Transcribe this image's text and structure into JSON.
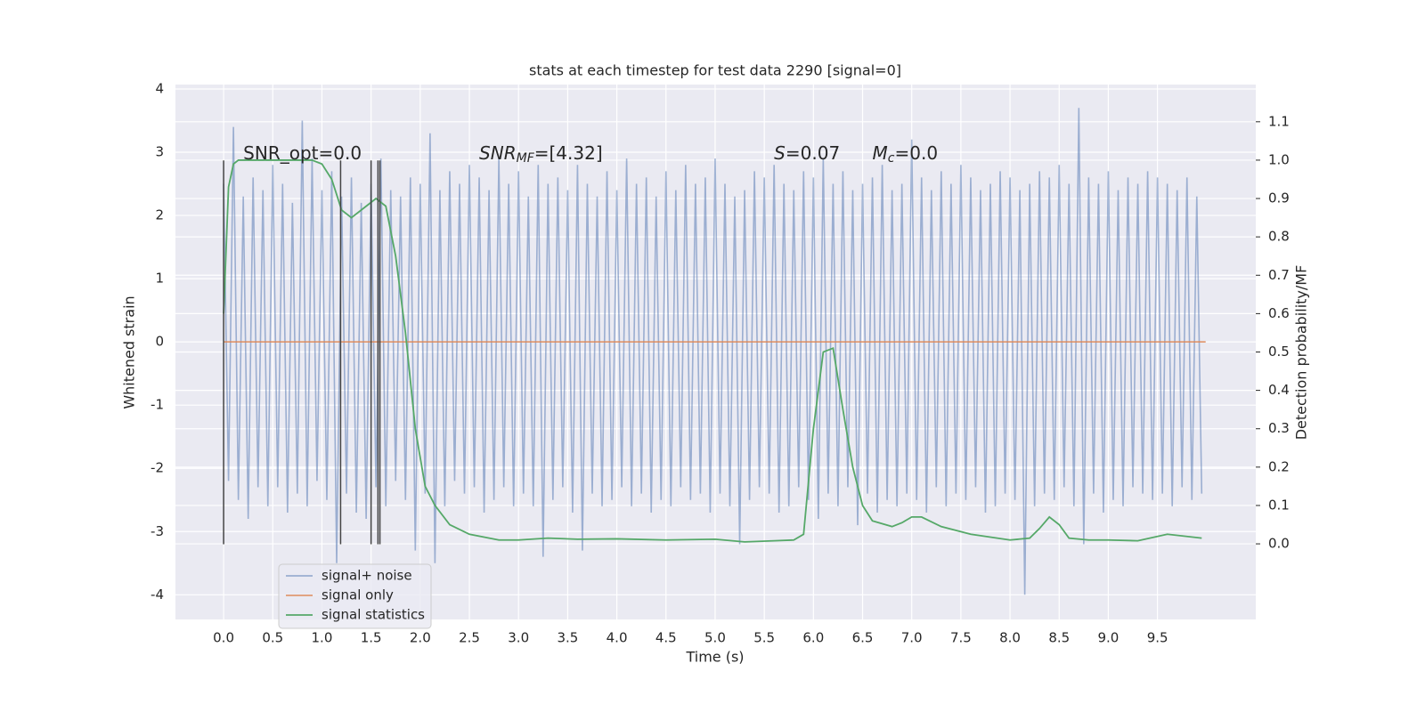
{
  "chart_data": {
    "type": "line",
    "title": "stats at each timestep for test data 2290 [signal=0]",
    "xlabel": "Time (s)",
    "ylabel": "Whitened strain",
    "y2label": "Detection probability/MF",
    "xlim": [
      -0.49,
      10.5
    ],
    "ylim": [
      -4.39,
      4.07
    ],
    "y2lim": [
      -0.197,
      1.197
    ],
    "xticks": [
      {
        "value": 0,
        "label": "0.0"
      },
      0.5,
      {
        "value": 1,
        "label": "1.0"
      },
      1.5,
      {
        "value": 2,
        "label": "2.0"
      },
      2.5,
      {
        "value": 3,
        "label": "3.0"
      },
      3.5,
      {
        "value": 4,
        "label": "4.0"
      },
      4.5,
      {
        "value": 5,
        "label": "5.0"
      },
      5.5,
      {
        "value": 6,
        "label": "6.0"
      },
      6.5,
      {
        "value": 7,
        "label": "7.0"
      },
      7.5,
      {
        "value": 8,
        "label": "8.0"
      },
      8.5,
      {
        "value": 9,
        "label": "9.0"
      },
      9.5
    ],
    "yticks": [
      -4,
      -3,
      -2,
      -1,
      0,
      1,
      2,
      3,
      4
    ],
    "y2ticks": [
      {
        "value": 0,
        "label": "0.0"
      },
      0.1,
      0.2,
      0.3,
      0.4,
      0.5,
      0.6,
      0.7,
      0.8,
      0.9,
      {
        "value": 1,
        "label": "1.0"
      },
      1.1
    ],
    "grid": true,
    "legend": "lower left",
    "series": [
      {
        "name": "signal+ noise",
        "color": "#4c72b0",
        "opacity": 0.5,
        "x": [
          0,
          0.05,
          0.1,
          0.15,
          0.2,
          0.25,
          0.3,
          0.35,
          0.4,
          0.45,
          0.5,
          0.55,
          0.6,
          0.65,
          0.7,
          0.75,
          0.8,
          0.85,
          0.9,
          0.95,
          1,
          1.05,
          1.1,
          1.15,
          1.2,
          1.25,
          1.3,
          1.35,
          1.4,
          1.45,
          1.5,
          1.55,
          1.6,
          1.65,
          1.7,
          1.75,
          1.8,
          1.85,
          1.9,
          1.95,
          2,
          2.05,
          2.1,
          2.15,
          2.2,
          2.25,
          2.3,
          2.35,
          2.4,
          2.45,
          2.5,
          2.55,
          2.6,
          2.65,
          2.7,
          2.75,
          2.8,
          2.85,
          2.9,
          2.95,
          3,
          3.05,
          3.1,
          3.15,
          3.2,
          3.25,
          3.3,
          3.35,
          3.4,
          3.45,
          3.5,
          3.55,
          3.6,
          3.65,
          3.7,
          3.75,
          3.8,
          3.85,
          3.9,
          3.95,
          4,
          4.05,
          4.1,
          4.15,
          4.2,
          4.25,
          4.3,
          4.35,
          4.4,
          4.45,
          4.5,
          4.55,
          4.6,
          4.65,
          4.7,
          4.75,
          4.8,
          4.85,
          4.9,
          4.95,
          5,
          5.05,
          5.1,
          5.15,
          5.2,
          5.25,
          5.3,
          5.35,
          5.4,
          5.45,
          5.5,
          5.55,
          5.6,
          5.65,
          5.7,
          5.75,
          5.8,
          5.85,
          5.9,
          5.95,
          6,
          6.05,
          6.1,
          6.15,
          6.2,
          6.25,
          6.3,
          6.35,
          6.4,
          6.45,
          6.5,
          6.55,
          6.6,
          6.65,
          6.7,
          6.75,
          6.8,
          6.85,
          6.9,
          6.95,
          7,
          7.05,
          7.1,
          7.15,
          7.2,
          7.25,
          7.3,
          7.35,
          7.4,
          7.45,
          7.5,
          7.55,
          7.6,
          7.65,
          7.7,
          7.75,
          7.8,
          7.85,
          7.9,
          7.95,
          8,
          8.05,
          8.1,
          8.15,
          8.2,
          8.25,
          8.3,
          8.35,
          8.4,
          8.45,
          8.5,
          8.55,
          8.6,
          8.65,
          8.7,
          8.75,
          8.8,
          8.85,
          8.9,
          8.95,
          9,
          9.05,
          9.1,
          9.15,
          9.2,
          9.25,
          9.3,
          9.35,
          9.4,
          9.45,
          9.5,
          9.55,
          9.6,
          9.65,
          9.7,
          9.75,
          9.8,
          9.85,
          9.9,
          9.95
        ],
        "values": [
          2.5,
          -2.2,
          3.4,
          -2.5,
          2.3,
          -2.8,
          2.6,
          -2.3,
          2.4,
          -2.6,
          2.8,
          -2.3,
          2.5,
          -2.7,
          2.2,
          -2.4,
          3.5,
          -2.6,
          2.9,
          -2.2,
          2.4,
          -2.5,
          2.7,
          -3.5,
          2.3,
          -2.4,
          2.6,
          -2.7,
          2.2,
          -2.8,
          2.5,
          -2.3,
          2.9,
          -2.6,
          2.4,
          -2.2,
          2.3,
          -2.5,
          2.6,
          -3.3,
          2.5,
          -2.4,
          3.3,
          -3.5,
          2.4,
          -2.6,
          2.7,
          -2.2,
          2.5,
          -2.4,
          2.8,
          -2.3,
          2.6,
          -2.7,
          2.4,
          -2.5,
          2.9,
          -2.3,
          2.5,
          -2.6,
          2.7,
          -2.4,
          2.3,
          -2.6,
          2.8,
          -3.4,
          2.5,
          -2.5,
          2.6,
          -2.3,
          2.4,
          -2.7,
          2.8,
          -3.3,
          2.5,
          -2.4,
          2.3,
          -2.6,
          2.7,
          -2.5,
          2.4,
          -2.3,
          2.9,
          -2.6,
          2.5,
          -2.4,
          2.6,
          -2.7,
          2.3,
          -2.5,
          2.7,
          -2.6,
          2.4,
          -2.3,
          2.8,
          -2.5,
          2.5,
          -2.4,
          2.6,
          -2.7,
          2.9,
          -2.4,
          2.5,
          -2.6,
          2.3,
          -3.2,
          2.4,
          -2.5,
          2.7,
          -2.3,
          2.6,
          -2.4,
          2.8,
          -2.7,
          2.5,
          -2.6,
          2.4,
          -2.3,
          2.7,
          -2.5,
          2.6,
          -2.8,
          2.9,
          -2.4,
          2.5,
          -2.6,
          2.7,
          -2.3,
          2.4,
          -2.9,
          2.5,
          -2.4,
          2.6,
          -2.7,
          2.8,
          -2.5,
          2.4,
          -2.6,
          2.5,
          -2.4,
          3.2,
          -2.5,
          2.6,
          -2.7,
          2.4,
          -2.3,
          2.7,
          -2.6,
          2.5,
          -2.4,
          2.8,
          -2.5,
          2.6,
          -2.3,
          2.4,
          -2.7,
          2.5,
          -2.6,
          2.7,
          -2.4,
          2.6,
          -2.5,
          2.4,
          -4.0,
          2.5,
          -2.6,
          2.7,
          -2.4,
          2.6,
          -2.5,
          2.8,
          -2.3,
          2.5,
          -2.6,
          3.7,
          -3.2,
          2.6,
          -2.4,
          2.5,
          -2.7,
          2.7,
          -2.5,
          2.4,
          -2.6,
          2.6,
          -2.3,
          2.5,
          -2.4,
          2.7,
          -2.5,
          2.6,
          -2.4,
          2.5,
          -2.6,
          2.4,
          -2.3,
          2.6,
          -2.5,
          2.3,
          -2.4
        ]
      },
      {
        "name": "signal only",
        "color": "#dd8452",
        "opacity": 0.8,
        "x": [
          0,
          9.99
        ],
        "values": [
          0,
          0
        ]
      },
      {
        "name": "signal statistics",
        "color": "#55a868",
        "opacity": 1,
        "axis": "y2",
        "x": [
          0,
          0.05,
          0.1,
          0.15,
          0.2,
          0.3,
          0.5,
          0.7,
          0.9,
          1.0,
          1.1,
          1.2,
          1.3,
          1.4,
          1.5,
          1.55,
          1.65,
          1.75,
          1.85,
          1.95,
          2.05,
          2.15,
          2.3,
          2.5,
          2.8,
          3.0,
          3.3,
          3.6,
          4.0,
          4.5,
          5.0,
          5.3,
          5.6,
          5.8,
          5.9,
          6.0,
          6.1,
          6.2,
          6.3,
          6.4,
          6.5,
          6.6,
          6.8,
          6.9,
          7.0,
          7.1,
          7.3,
          7.6,
          8.0,
          8.2,
          8.3,
          8.4,
          8.5,
          8.6,
          8.8,
          9.0,
          9.3,
          9.6,
          9.95
        ],
        "values": [
          0.6,
          0.93,
          0.99,
          1.0,
          1.0,
          1.0,
          1.0,
          1.0,
          1.0,
          0.99,
          0.95,
          0.87,
          0.85,
          0.87,
          0.89,
          0.9,
          0.88,
          0.75,
          0.55,
          0.3,
          0.15,
          0.1,
          0.05,
          0.025,
          0.01,
          0.01,
          0.015,
          0.012,
          0.013,
          0.01,
          0.012,
          0.005,
          0.008,
          0.01,
          0.025,
          0.3,
          0.5,
          0.51,
          0.35,
          0.2,
          0.1,
          0.06,
          0.045,
          0.055,
          0.07,
          0.07,
          0.045,
          0.025,
          0.01,
          0.015,
          0.04,
          0.07,
          0.05,
          0.015,
          0.01,
          0.01,
          0.008,
          0.025,
          0.015
        ]
      }
    ],
    "vlines": {
      "x": [
        0,
        1.19,
        1.5,
        1.57,
        1.59
      ],
      "ymin": -3.2,
      "ymax": 2.87,
      "color": "#444444"
    },
    "annotations": [
      {
        "x": 0.2,
        "y": 2.97,
        "text": "SNR_opt=0.0"
      },
      {
        "x": 2.6,
        "y": 2.97,
        "base": "SNR",
        "sub": "MF",
        "text": "=[4.32]"
      },
      {
        "x": 5.6,
        "y": 2.97,
        "base": "S",
        "text": "=0.07"
      },
      {
        "x": 6.6,
        "y": 2.97,
        "base": "M",
        "sub": "c",
        "text": "=0.0"
      }
    ]
  }
}
